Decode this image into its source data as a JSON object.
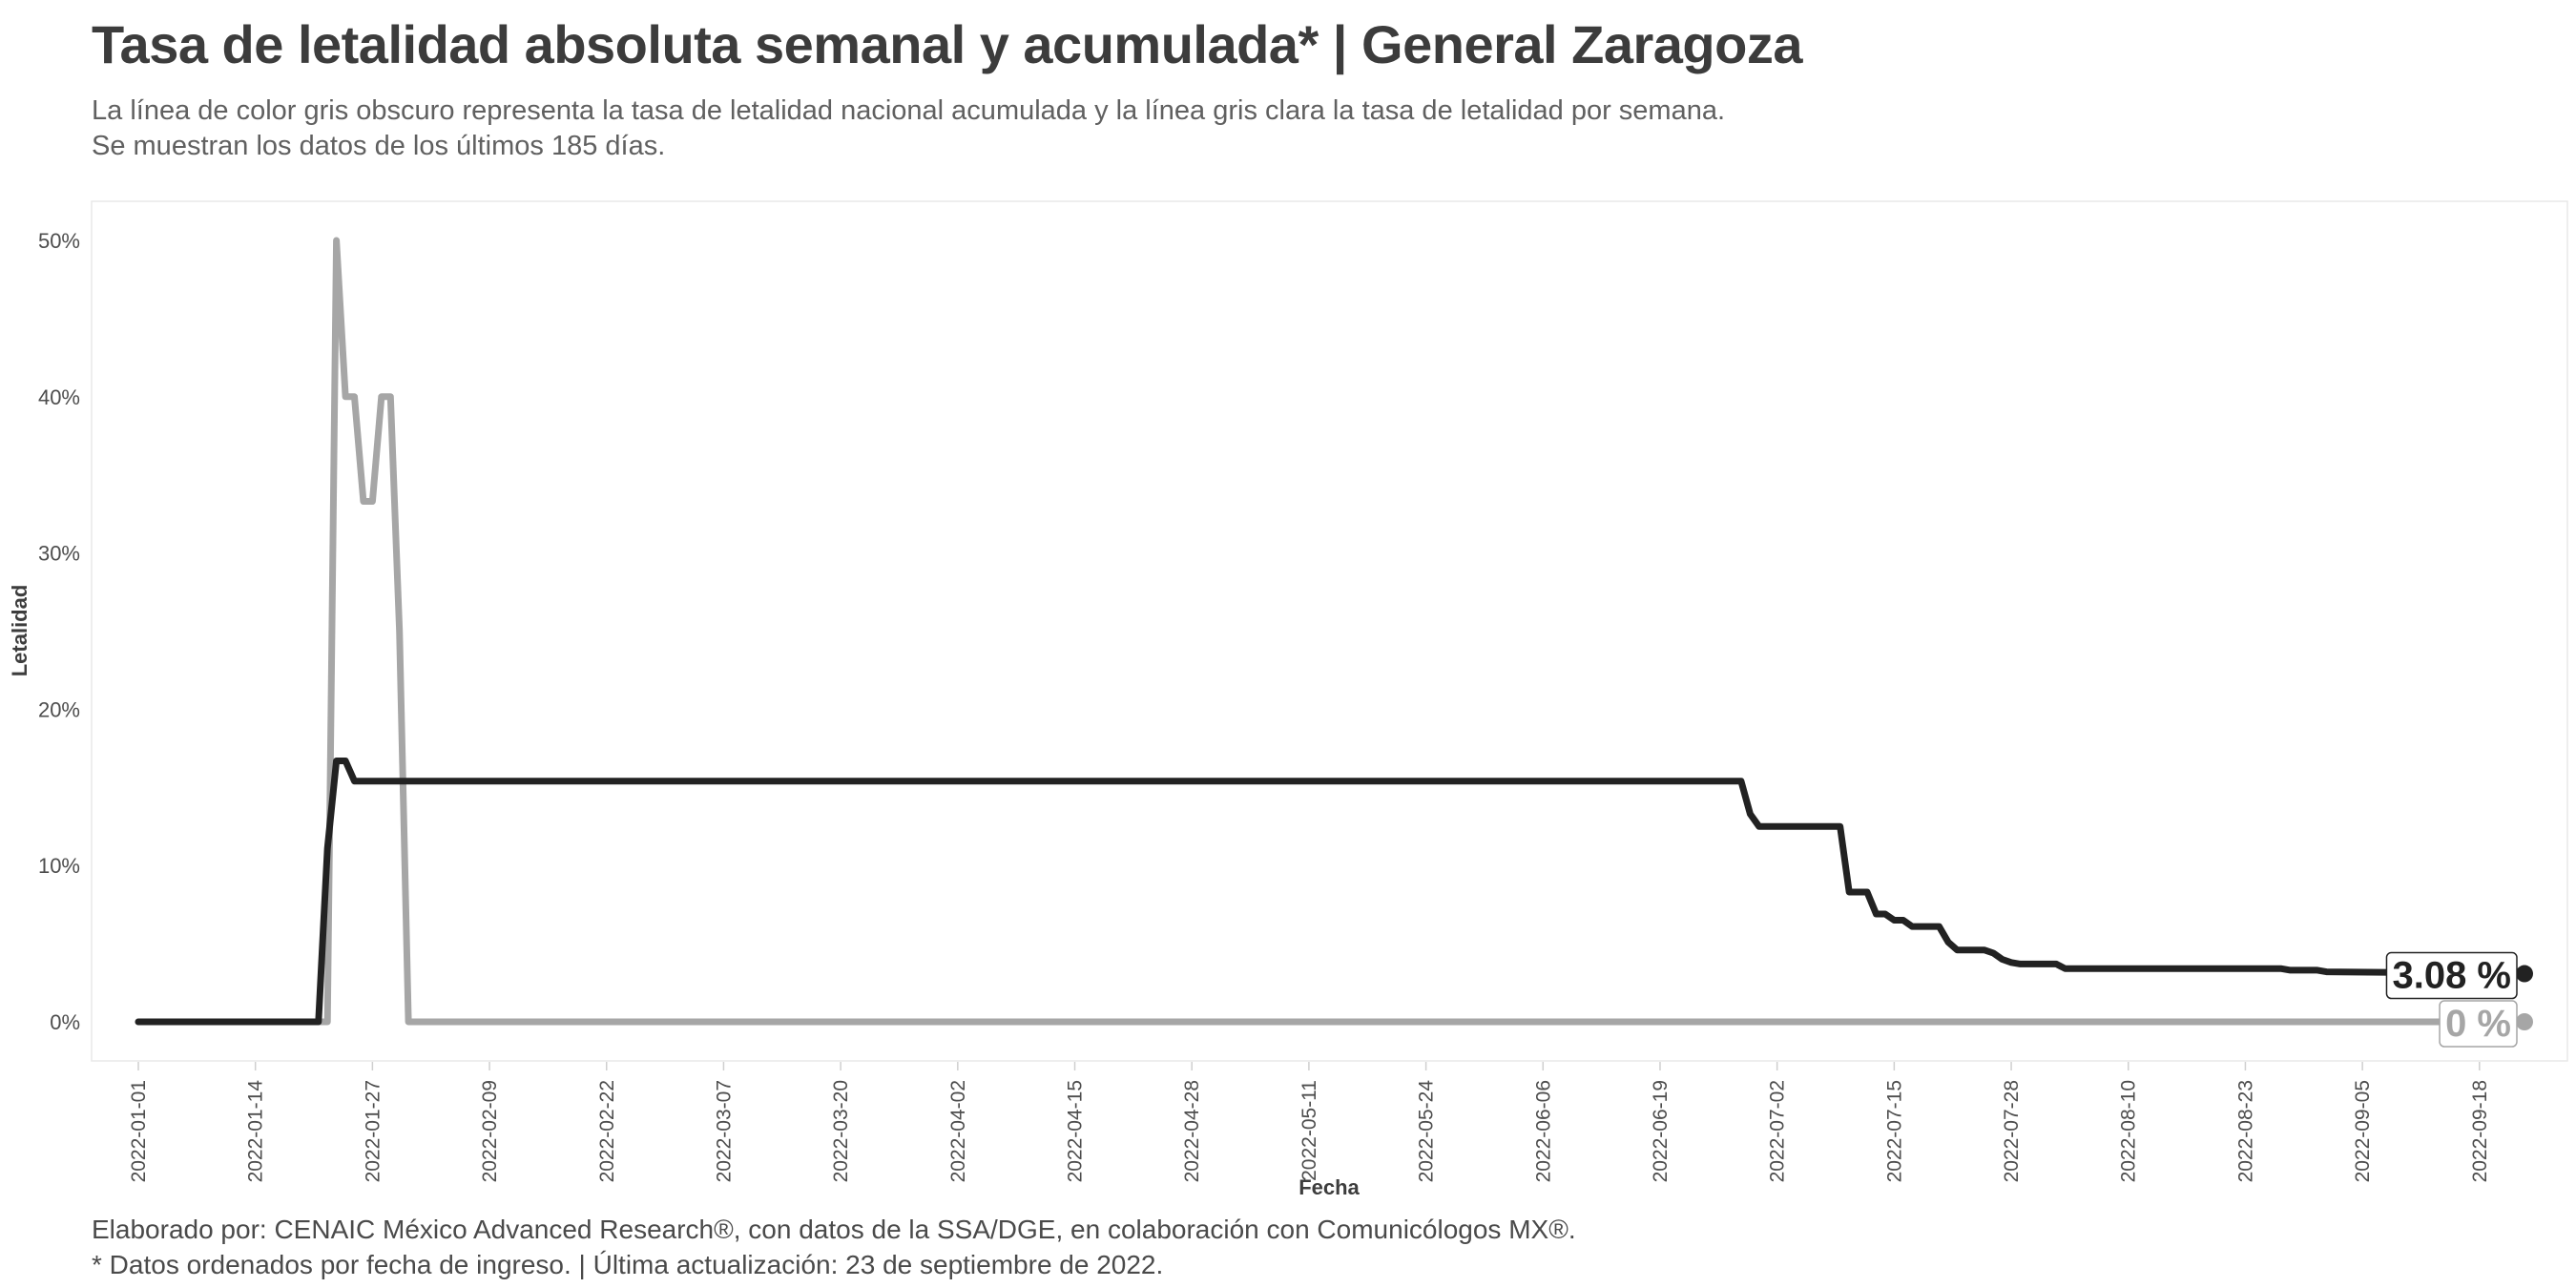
{
  "title": "Tasa de letalidad absoluta semanal y acumulada* | General Zaragoza",
  "subtitle": [
    "La línea de color gris obscuro representa la tasa de letalidad nacional acumulada y la línea gris clara la tasa de letalidad por semana.",
    "Se muestran los datos de los últimos 185 días."
  ],
  "caption": [
    "Elaborado por: CENAIC México Advanced Research®, con datos de la SSA/DGE, en colaboración con Comunicólogos MX®.",
    "* Datos ordenados por fecha de ingreso. | Última actualización: 23 de septiembre de 2022."
  ],
  "colors": {
    "accumulated": "#222222",
    "weekly": "#a6a6a6",
    "panel_border": "#e8e8e8",
    "axis_text": "#4d4d4d"
  },
  "chart_data": {
    "type": "line",
    "xlabel": "Fecha",
    "ylabel": "Letalidad",
    "x_type": "date",
    "xlim": [
      "2022-01-01",
      "2022-09-23"
    ],
    "ylim": [
      0,
      50
    ],
    "x_ticks": [
      "2022-01-01",
      "2022-01-14",
      "2022-01-27",
      "2022-02-09",
      "2022-02-22",
      "2022-03-07",
      "2022-03-20",
      "2022-04-02",
      "2022-04-15",
      "2022-04-28",
      "2022-05-11",
      "2022-05-24",
      "2022-06-06",
      "2022-06-19",
      "2022-07-02",
      "2022-07-15",
      "2022-07-28",
      "2022-08-10",
      "2022-08-23",
      "2022-09-05",
      "2022-09-18"
    ],
    "y_ticks": [
      0,
      10,
      20,
      30,
      40,
      50
    ],
    "y_tick_labels": [
      "0%",
      "10%",
      "20%",
      "30%",
      "40%",
      "50%"
    ],
    "grid": false,
    "series": [
      {
        "key": "weekly",
        "points": [
          [
            "2022-01-01",
            0
          ],
          [
            "2022-01-22",
            0
          ],
          [
            "2022-01-23",
            50
          ],
          [
            "2022-01-24",
            40
          ],
          [
            "2022-01-25",
            40
          ],
          [
            "2022-01-26",
            33.3
          ],
          [
            "2022-01-27",
            33.3
          ],
          [
            "2022-01-28",
            40
          ],
          [
            "2022-01-29",
            40
          ],
          [
            "2022-01-30",
            25
          ],
          [
            "2022-01-31",
            0
          ],
          [
            "2022-09-23",
            0
          ]
        ],
        "end_label": "0 %"
      },
      {
        "key": "accumulated",
        "points": [
          [
            "2022-01-01",
            0
          ],
          [
            "2022-01-21",
            0
          ],
          [
            "2022-01-22",
            11.1
          ],
          [
            "2022-01-23",
            16.7
          ],
          [
            "2022-01-24",
            16.7
          ],
          [
            "2022-01-25",
            15.4
          ],
          [
            "2022-06-28",
            15.4
          ],
          [
            "2022-06-29",
            13.3
          ],
          [
            "2022-06-30",
            12.5
          ],
          [
            "2022-07-09",
            12.5
          ],
          [
            "2022-07-10",
            8.3
          ],
          [
            "2022-07-12",
            8.3
          ],
          [
            "2022-07-13",
            6.9
          ],
          [
            "2022-07-14",
            6.9
          ],
          [
            "2022-07-15",
            6.5
          ],
          [
            "2022-07-16",
            6.5
          ],
          [
            "2022-07-17",
            6.1
          ],
          [
            "2022-07-20",
            6.1
          ],
          [
            "2022-07-21",
            5.1
          ],
          [
            "2022-07-22",
            4.6
          ],
          [
            "2022-07-25",
            4.6
          ],
          [
            "2022-07-26",
            4.4
          ],
          [
            "2022-07-27",
            4.0
          ],
          [
            "2022-07-28",
            3.8
          ],
          [
            "2022-07-29",
            3.7
          ],
          [
            "2022-08-02",
            3.7
          ],
          [
            "2022-08-03",
            3.4
          ],
          [
            "2022-08-27",
            3.4
          ],
          [
            "2022-08-28",
            3.3
          ],
          [
            "2022-08-31",
            3.3
          ],
          [
            "2022-09-01",
            3.2
          ],
          [
            "2022-09-23",
            3.08
          ]
        ],
        "end_label": "3.08 %"
      }
    ]
  }
}
